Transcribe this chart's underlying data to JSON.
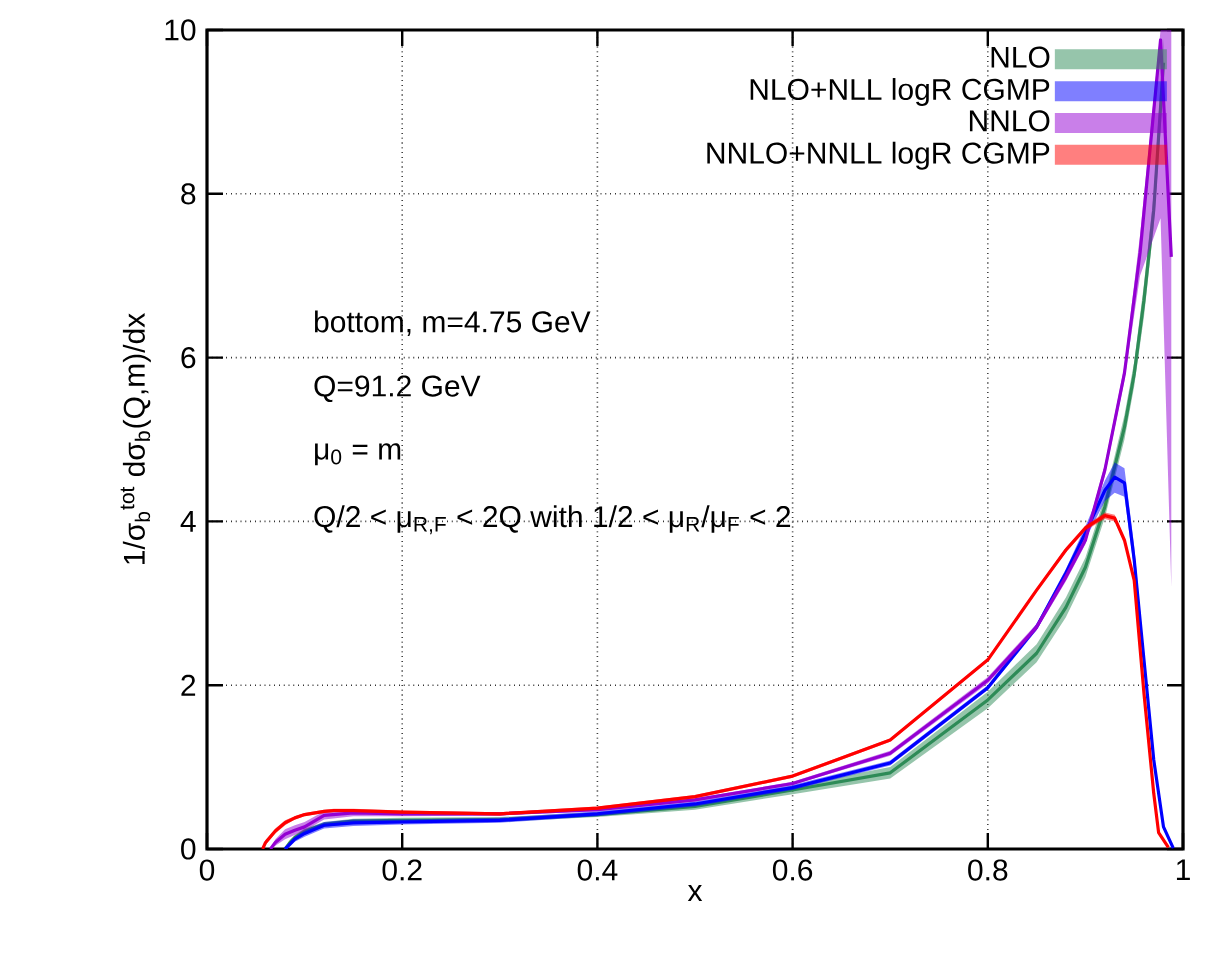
{
  "chart_data": {
    "type": "line",
    "xlabel": "x",
    "ylabel": "1/σ$_{b}$$^{tot}$ dσ$_{b}$(Q,m)/dx",
    "xlim": [
      0,
      1
    ],
    "ylim": [
      0,
      10
    ],
    "xticks": [
      0,
      0.2,
      0.4,
      0.6,
      0.8,
      1
    ],
    "yticks": [
      0,
      2,
      4,
      6,
      8,
      10
    ],
    "grid": true,
    "legend": "top right",
    "annotations": [
      "bottom, m=4.75 GeV",
      "Q=91.2 GeV",
      "μ$_{0}$ = m",
      "Q/2 < μ$_{R,F}$  < 2Q with 1/2 < μ$_{R}$/μ$_{F}$ < 2"
    ],
    "series": [
      {
        "name": "NLO",
        "color": "#2e8b57",
        "x": [
          0.08,
          0.085,
          0.09,
          0.1,
          0.12,
          0.15,
          0.2,
          0.3,
          0.4,
          0.5,
          0.6,
          0.7,
          0.8,
          0.85,
          0.88,
          0.9,
          0.92,
          0.94,
          0.95,
          0.96,
          0.97,
          0.98
        ],
        "values": [
          0,
          0.08,
          0.14,
          0.22,
          0.3,
          0.34,
          0.35,
          0.36,
          0.42,
          0.52,
          0.72,
          0.93,
          1.82,
          2.39,
          2.95,
          3.44,
          4.18,
          5.15,
          5.8,
          6.7,
          7.8,
          9.6
        ],
        "lower": [
          0,
          0.05,
          0.11,
          0.19,
          0.27,
          0.31,
          0.32,
          0.33,
          0.39,
          0.48,
          0.67,
          0.86,
          1.72,
          2.28,
          2.83,
          3.32,
          4.05,
          5.0,
          5.65,
          6.5,
          7.6,
          9.3
        ],
        "upper": [
          0,
          0.11,
          0.17,
          0.25,
          0.33,
          0.37,
          0.38,
          0.39,
          0.45,
          0.56,
          0.77,
          1.0,
          1.92,
          2.5,
          3.07,
          3.56,
          4.3,
          5.3,
          5.95,
          6.9,
          8.0,
          9.9
        ]
      },
      {
        "name": "NLO+NLL logR CGMP",
        "color": "#0000ff",
        "x": [
          0.08,
          0.085,
          0.09,
          0.1,
          0.12,
          0.15,
          0.2,
          0.3,
          0.4,
          0.5,
          0.6,
          0.7,
          0.8,
          0.85,
          0.88,
          0.9,
          0.92,
          0.93,
          0.94,
          0.95,
          0.96,
          0.97,
          0.98,
          0.99
        ],
        "values": [
          0,
          0.06,
          0.12,
          0.19,
          0.29,
          0.32,
          0.33,
          0.35,
          0.43,
          0.55,
          0.75,
          1.05,
          1.97,
          2.71,
          3.37,
          3.86,
          4.38,
          4.54,
          4.47,
          3.53,
          2.31,
          1.09,
          0.27,
          0.01
        ],
        "lower": [
          0,
          0.03,
          0.09,
          0.15,
          0.25,
          0.28,
          0.3,
          0.32,
          0.4,
          0.52,
          0.72,
          1.02,
          1.94,
          2.67,
          3.32,
          3.78,
          4.25,
          4.35,
          4.3,
          3.4,
          2.22,
          1.03,
          0.24,
          0
        ],
        "upper": [
          0,
          0.09,
          0.15,
          0.23,
          0.33,
          0.36,
          0.36,
          0.38,
          0.46,
          0.58,
          0.78,
          1.08,
          2.0,
          2.75,
          3.42,
          3.94,
          4.5,
          4.72,
          4.65,
          3.7,
          2.4,
          1.15,
          0.3,
          0.02
        ]
      },
      {
        "name": "NNLO",
        "color": "#9400d3",
        "x": [
          0.065,
          0.07,
          0.08,
          0.09,
          0.1,
          0.12,
          0.15,
          0.2,
          0.3,
          0.4,
          0.5,
          0.6,
          0.7,
          0.8,
          0.85,
          0.88,
          0.9,
          0.92,
          0.94,
          0.956,
          0.977,
          0.988
        ],
        "values": [
          0,
          0.08,
          0.18,
          0.23,
          0.27,
          0.41,
          0.44,
          0.43,
          0.43,
          0.48,
          0.6,
          0.8,
          1.17,
          2.06,
          2.71,
          3.32,
          3.77,
          4.63,
          5.81,
          7.28,
          9.88,
          7.23
        ],
        "lower": [
          0,
          0.04,
          0.12,
          0.17,
          0.22,
          0.36,
          0.4,
          0.4,
          0.41,
          0.46,
          0.58,
          0.78,
          1.14,
          2.02,
          2.67,
          3.27,
          3.72,
          4.56,
          5.72,
          7.0,
          7.7,
          3.2
        ],
        "upper": [
          0,
          0.12,
          0.24,
          0.29,
          0.33,
          0.46,
          0.48,
          0.46,
          0.45,
          0.5,
          0.62,
          0.82,
          1.2,
          2.1,
          2.75,
          3.37,
          3.82,
          4.7,
          5.9,
          7.5,
          10,
          10
        ]
      },
      {
        "name": "NNLO+NNLL logR CGMP",
        "color": "#ff0000",
        "x": [
          0.057,
          0.06,
          0.07,
          0.08,
          0.09,
          0.1,
          0.12,
          0.13,
          0.15,
          0.2,
          0.3,
          0.4,
          0.5,
          0.6,
          0.7,
          0.8,
          0.85,
          0.88,
          0.9,
          0.92,
          0.93,
          0.94,
          0.95,
          0.96,
          0.97,
          0.975,
          0.985
        ],
        "values": [
          0,
          0.08,
          0.22,
          0.32,
          0.38,
          0.42,
          0.46,
          0.47,
          0.47,
          0.45,
          0.43,
          0.5,
          0.64,
          0.89,
          1.33,
          2.31,
          3.16,
          3.65,
          3.92,
          4.07,
          4.04,
          3.77,
          3.28,
          1.9,
          0.68,
          0.2,
          0.02
        ],
        "lower": [
          0,
          0.05,
          0.19,
          0.29,
          0.36,
          0.4,
          0.44,
          0.45,
          0.45,
          0.43,
          0.41,
          0.48,
          0.62,
          0.87,
          1.31,
          2.29,
          3.14,
          3.62,
          3.89,
          4.03,
          4.0,
          3.74,
          3.25,
          1.87,
          0.66,
          0.18,
          0.01
        ],
        "upper": [
          0,
          0.11,
          0.25,
          0.35,
          0.4,
          0.44,
          0.48,
          0.49,
          0.49,
          0.47,
          0.45,
          0.52,
          0.66,
          0.91,
          1.35,
          2.33,
          3.18,
          3.68,
          3.95,
          4.11,
          4.08,
          3.8,
          3.31,
          1.93,
          0.7,
          0.22,
          0.03
        ]
      }
    ]
  }
}
